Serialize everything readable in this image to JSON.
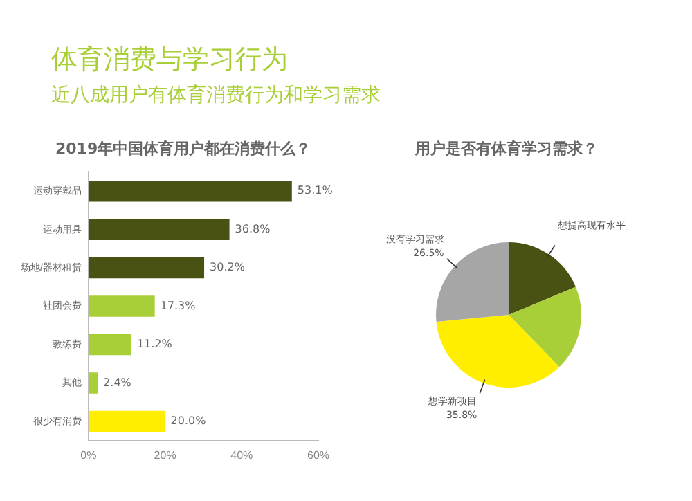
{
  "chart_data": [
    {
      "type": "bar",
      "orientation": "horizontal",
      "title": "2019年中国体育用户都在消费什么？",
      "annotations": [
        "体育消费与学习行为",
        "近八成用户有体育消费行为和学习需求"
      ],
      "categories": [
        "运动穿戴品",
        "运动用具",
        "场地/器材租赁",
        "社团会费",
        "教练费",
        "其他",
        "很少有消费"
      ],
      "values": [
        53.1,
        36.8,
        30.2,
        17.3,
        11.2,
        2.4,
        20.0
      ],
      "colors": [
        "#4a5213",
        "#4a5213",
        "#4a5213",
        "#a9cf38",
        "#a9cf38",
        "#a9cf38",
        "#ffee00"
      ],
      "value_labels": [
        "53.1%",
        "36.8%",
        "30.2%",
        "17.3%",
        "11.2%",
        "2.4%",
        "20.0%"
      ],
      "xlim": [
        0,
        60
      ],
      "xticks": [
        {
          "value": 0,
          "label": "0%"
        },
        {
          "value": 20,
          "label": "20%"
        },
        {
          "value": 40,
          "label": "40%"
        },
        {
          "value": 60,
          "label": "60%"
        }
      ],
      "grid": false,
      "legend": false
    },
    {
      "type": "pie",
      "title": "用户是否有体育学习需求？",
      "categories": [
        "想提高现有水平",
        null,
        "想学新项目",
        "没有学习需求"
      ],
      "values": [
        18.7,
        19.0,
        35.8,
        26.5
      ],
      "colors": [
        "#4a5213",
        "#a9cf38",
        "#ffee00",
        "#a6a6a6"
      ],
      "value_labels": [
        null,
        null,
        "35.8%",
        "26.5%"
      ],
      "legend": false
    }
  ]
}
